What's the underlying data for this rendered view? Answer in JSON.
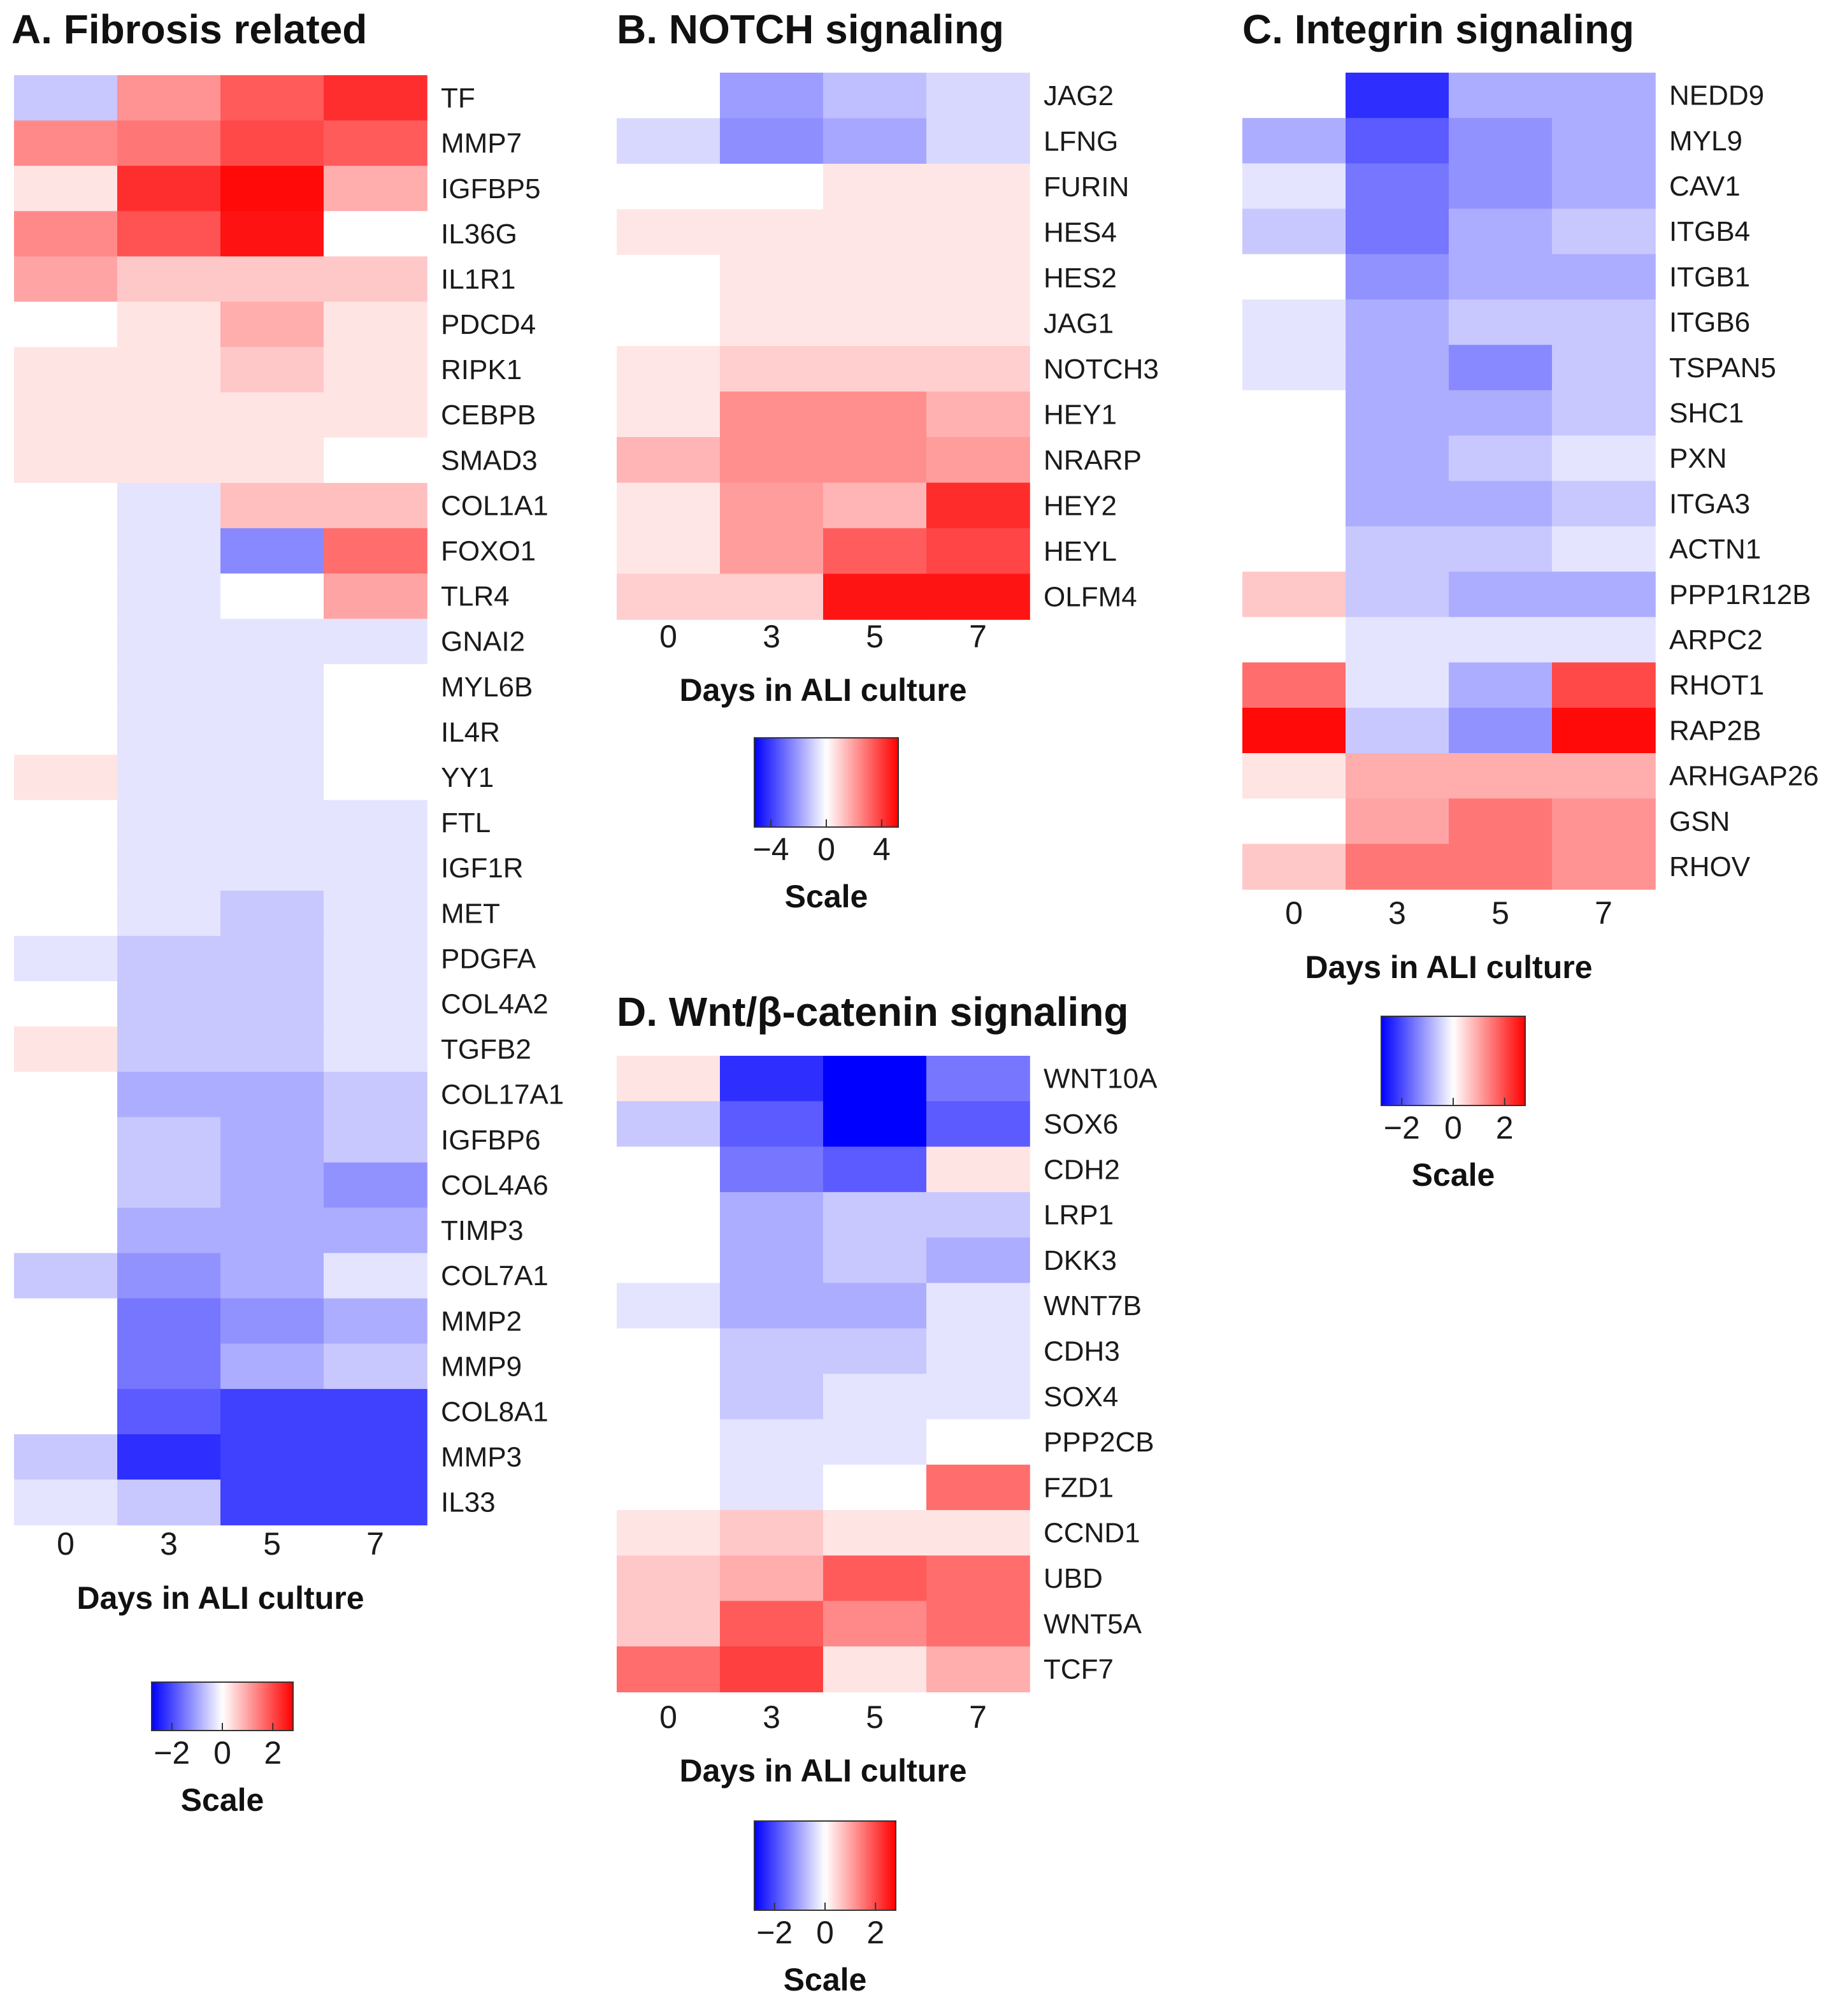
{
  "colors": {
    "low": "#0000ff",
    "mid": "#ffffff",
    "high": "#ff0000"
  },
  "chart_data": [
    {
      "id": "A",
      "type": "heatmap",
      "title": "A. Fibrosis related",
      "xlabel": "Days in ALI culture",
      "x": [
        "0",
        "3",
        "5",
        "7"
      ],
      "scale_label": "Scale",
      "scale_ticks": [
        "−2",
        "0",
        "2"
      ],
      "scale_tick_values": [
        -2,
        0,
        2
      ],
      "range": [
        -2.8,
        2.8
      ],
      "rows": [
        {
          "gene": "TF",
          "values": [
            -0.6,
            1.2,
            1.8,
            2.3
          ]
        },
        {
          "gene": "MMP7",
          "values": [
            1.3,
            1.5,
            2.0,
            1.8
          ]
        },
        {
          "gene": "IGFBP5",
          "values": [
            0.3,
            2.3,
            2.7,
            0.9
          ]
        },
        {
          "gene": "IL36G",
          "values": [
            1.3,
            1.9,
            2.6,
            0.0
          ]
        },
        {
          "gene": "IL1R1",
          "values": [
            1.0,
            0.6,
            0.6,
            0.6
          ]
        },
        {
          "gene": "PDCD4",
          "values": [
            0.0,
            0.3,
            0.9,
            0.3
          ]
        },
        {
          "gene": "RIPK1",
          "values": [
            0.3,
            0.3,
            0.6,
            0.3
          ]
        },
        {
          "gene": "CEBPB",
          "values": [
            0.3,
            0.3,
            0.3,
            0.3
          ]
        },
        {
          "gene": "SMAD3",
          "values": [
            0.3,
            0.3,
            0.3,
            0.0
          ]
        },
        {
          "gene": "COL1A1",
          "values": [
            0.0,
            -0.3,
            0.7,
            0.7
          ]
        },
        {
          "gene": "FOXO1",
          "values": [
            0.0,
            -0.3,
            -1.3,
            1.6
          ]
        },
        {
          "gene": "TLR4",
          "values": [
            0.0,
            -0.3,
            0.0,
            1.0
          ]
        },
        {
          "gene": "GNAI2",
          "values": [
            0.0,
            -0.3,
            -0.3,
            -0.3
          ]
        },
        {
          "gene": "MYL6B",
          "values": [
            0.0,
            -0.3,
            -0.3,
            0.0
          ]
        },
        {
          "gene": "IL4R",
          "values": [
            0.0,
            -0.3,
            -0.3,
            0.0
          ]
        },
        {
          "gene": "YY1",
          "values": [
            0.3,
            -0.3,
            -0.3,
            0.0
          ]
        },
        {
          "gene": "FTL",
          "values": [
            0.0,
            -0.3,
            -0.3,
            -0.3
          ]
        },
        {
          "gene": "IGF1R",
          "values": [
            0.0,
            -0.3,
            -0.3,
            -0.3
          ]
        },
        {
          "gene": "MET",
          "values": [
            0.0,
            -0.3,
            -0.6,
            -0.3
          ]
        },
        {
          "gene": "PDGFA",
          "values": [
            -0.3,
            -0.6,
            -0.6,
            -0.3
          ]
        },
        {
          "gene": "COL4A2",
          "values": [
            0.0,
            -0.6,
            -0.6,
            -0.3
          ]
        },
        {
          "gene": "TGFB2",
          "values": [
            0.3,
            -0.6,
            -0.6,
            -0.3
          ]
        },
        {
          "gene": "COL17A1",
          "values": [
            0.0,
            -0.9,
            -0.9,
            -0.6
          ]
        },
        {
          "gene": "IGFBP6",
          "values": [
            0.0,
            -0.6,
            -0.9,
            -0.6
          ]
        },
        {
          "gene": "COL4A6",
          "values": [
            0.0,
            -0.6,
            -0.9,
            -1.2
          ]
        },
        {
          "gene": "TIMP3",
          "values": [
            0.0,
            -0.9,
            -0.9,
            -0.9
          ]
        },
        {
          "gene": "COL7A1",
          "values": [
            -0.6,
            -1.2,
            -0.9,
            -0.3
          ]
        },
        {
          "gene": "MMP2",
          "values": [
            0.0,
            -1.5,
            -1.2,
            -0.9
          ]
        },
        {
          "gene": "MMP9",
          "values": [
            0.0,
            -1.5,
            -0.9,
            -0.6
          ]
        },
        {
          "gene": "COL8A1",
          "values": [
            0.0,
            -1.8,
            -2.1,
            -2.1
          ]
        },
        {
          "gene": "MMP3",
          "values": [
            -0.6,
            -2.3,
            -2.1,
            -2.1
          ]
        },
        {
          "gene": "IL33",
          "values": [
            -0.3,
            -0.6,
            -2.1,
            -2.1
          ]
        }
      ]
    },
    {
      "id": "B",
      "type": "heatmap",
      "title": "B. NOTCH signaling",
      "xlabel": "Days in ALI culture",
      "x": [
        "0",
        "3",
        "5",
        "7"
      ],
      "scale_label": "Scale",
      "scale_ticks": [
        "−4",
        "0",
        "4"
      ],
      "scale_tick_values": [
        -4,
        0,
        4
      ],
      "range": [
        -5.2,
        5.2
      ],
      "rows": [
        {
          "gene": "JAG2",
          "values": [
            0.0,
            -2.0,
            -1.3,
            -0.8
          ]
        },
        {
          "gene": "LFNG",
          "values": [
            -0.8,
            -2.3,
            -1.8,
            -0.8
          ]
        },
        {
          "gene": "FURIN",
          "values": [
            0.0,
            0.0,
            0.5,
            0.5
          ]
        },
        {
          "gene": "HES4",
          "values": [
            0.5,
            0.5,
            0.5,
            0.5
          ]
        },
        {
          "gene": "HES2",
          "values": [
            0.0,
            0.5,
            0.5,
            0.5
          ]
        },
        {
          "gene": "JAG1",
          "values": [
            0.0,
            0.5,
            0.5,
            0.5
          ]
        },
        {
          "gene": "NOTCH3",
          "values": [
            0.5,
            1.0,
            1.0,
            1.0
          ]
        },
        {
          "gene": "HEY1",
          "values": [
            0.5,
            2.3,
            2.3,
            1.6
          ]
        },
        {
          "gene": "NRARP",
          "values": [
            1.5,
            2.3,
            2.3,
            2.0
          ]
        },
        {
          "gene": "HEY2",
          "values": [
            0.5,
            2.0,
            1.5,
            4.3
          ]
        },
        {
          "gene": "HEYL",
          "values": [
            0.5,
            2.0,
            3.3,
            3.8
          ]
        },
        {
          "gene": "OLFM4",
          "values": [
            1.0,
            1.0,
            4.8,
            4.8
          ]
        }
      ]
    },
    {
      "id": "C",
      "type": "heatmap",
      "title": "C. Integrin signaling",
      "xlabel": "Days in ALI culture",
      "x": [
        "0",
        "3",
        "5",
        "7"
      ],
      "scale_label": "Scale",
      "scale_ticks": [
        "−2",
        "0",
        "2"
      ],
      "scale_tick_values": [
        -2,
        0,
        2
      ],
      "range": [
        -2.8,
        2.8
      ],
      "rows": [
        {
          "gene": "NEDD9",
          "values": [
            0.0,
            -2.3,
            -0.9,
            -0.9
          ]
        },
        {
          "gene": "MYL9",
          "values": [
            -0.9,
            -1.8,
            -1.2,
            -0.9
          ]
        },
        {
          "gene": "CAV1",
          "values": [
            -0.3,
            -1.5,
            -1.2,
            -0.9
          ]
        },
        {
          "gene": "ITGB4",
          "values": [
            -0.6,
            -1.5,
            -0.9,
            -0.6
          ]
        },
        {
          "gene": "ITGB1",
          "values": [
            0.0,
            -1.2,
            -0.9,
            -0.9
          ]
        },
        {
          "gene": "ITGB6",
          "values": [
            -0.3,
            -0.9,
            -0.6,
            -0.6
          ]
        },
        {
          "gene": "TSPAN5",
          "values": [
            -0.3,
            -0.9,
            -1.3,
            -0.6
          ]
        },
        {
          "gene": "SHC1",
          "values": [
            0.0,
            -0.9,
            -0.9,
            -0.6
          ]
        },
        {
          "gene": "PXN",
          "values": [
            0.0,
            -0.9,
            -0.6,
            -0.3
          ]
        },
        {
          "gene": "ITGA3",
          "values": [
            0.0,
            -0.9,
            -0.9,
            -0.6
          ]
        },
        {
          "gene": "ACTN1",
          "values": [
            0.0,
            -0.6,
            -0.6,
            -0.3
          ]
        },
        {
          "gene": "PPP1R12B",
          "values": [
            0.6,
            -0.6,
            -0.9,
            -0.9
          ]
        },
        {
          "gene": "ARPC2",
          "values": [
            0.0,
            -0.3,
            -0.3,
            -0.3
          ]
        },
        {
          "gene": "RHOT1",
          "values": [
            1.6,
            -0.3,
            -0.9,
            2.0
          ]
        },
        {
          "gene": "RAP2B",
          "values": [
            2.7,
            -0.6,
            -1.2,
            2.7
          ]
        },
        {
          "gene": "ARHGAP26",
          "values": [
            0.3,
            0.9,
            0.9,
            0.9
          ]
        },
        {
          "gene": "GSN",
          "values": [
            0.0,
            1.0,
            1.5,
            1.2
          ]
        },
        {
          "gene": "RHOV",
          "values": [
            0.6,
            1.5,
            1.5,
            1.2
          ]
        }
      ]
    },
    {
      "id": "D",
      "type": "heatmap",
      "title": "D. Wnt/β-catenin signaling",
      "xlabel": "Days in ALI culture",
      "x": [
        "0",
        "3",
        "5",
        "7"
      ],
      "scale_label": "Scale",
      "scale_ticks": [
        "−2",
        "0",
        "2"
      ],
      "scale_tick_values": [
        -2,
        0,
        2
      ],
      "range": [
        -2.8,
        2.8
      ],
      "rows": [
        {
          "gene": "WNT10A",
          "values": [
            0.3,
            -2.3,
            -2.8,
            -1.5
          ]
        },
        {
          "gene": "SOX6",
          "values": [
            -0.6,
            -1.8,
            -2.8,
            -1.8
          ]
        },
        {
          "gene": "CDH2",
          "values": [
            0.0,
            -1.5,
            -1.8,
            0.3
          ]
        },
        {
          "gene": "LRP1",
          "values": [
            0.0,
            -0.9,
            -0.6,
            -0.6
          ]
        },
        {
          "gene": "DKK3",
          "values": [
            0.0,
            -0.9,
            -0.6,
            -0.9
          ]
        },
        {
          "gene": "WNT7B",
          "values": [
            -0.3,
            -0.9,
            -0.9,
            -0.3
          ]
        },
        {
          "gene": "CDH3",
          "values": [
            0.0,
            -0.6,
            -0.6,
            -0.3
          ]
        },
        {
          "gene": "SOX4",
          "values": [
            0.0,
            -0.6,
            -0.3,
            -0.3
          ]
        },
        {
          "gene": "PPP2CB",
          "values": [
            0.0,
            -0.3,
            -0.3,
            0.0
          ]
        },
        {
          "gene": "FZD1",
          "values": [
            0.0,
            -0.3,
            0.0,
            1.6
          ]
        },
        {
          "gene": "CCND1",
          "values": [
            0.3,
            0.6,
            0.3,
            0.3
          ]
        },
        {
          "gene": "UBD",
          "values": [
            0.6,
            0.9,
            1.8,
            1.6
          ]
        },
        {
          "gene": "WNT5A",
          "values": [
            0.6,
            1.8,
            1.3,
            1.6
          ]
        },
        {
          "gene": "TCF7",
          "values": [
            1.6,
            2.1,
            0.3,
            0.9
          ]
        }
      ]
    }
  ]
}
